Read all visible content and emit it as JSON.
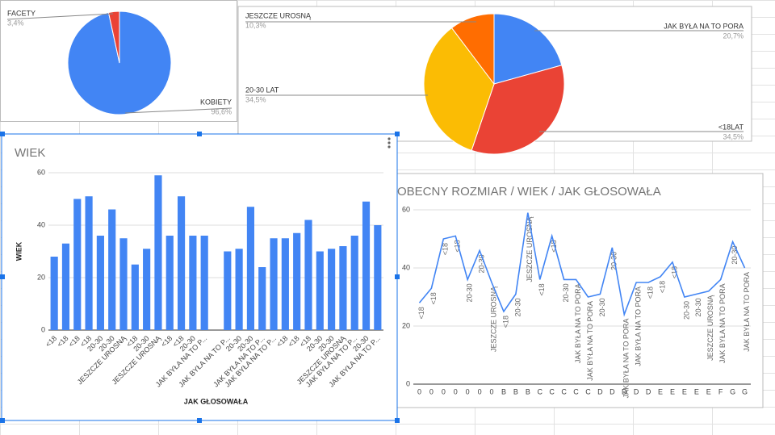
{
  "chart_data": [
    {
      "type": "pie",
      "categories": [
        "KOBIETY",
        "FACETY"
      ],
      "values": [
        96.6,
        3.4
      ],
      "value_labels": [
        "96,6%",
        "3,4%"
      ],
      "colors": [
        "#4285f4",
        "#ea4335"
      ]
    },
    {
      "type": "pie",
      "categories": [
        "JAK BYŁA NA TO PORA",
        "<18LAT",
        "20-30 LAT",
        "JESZCZE UROSNĄ"
      ],
      "values": [
        20.7,
        34.5,
        34.5,
        10.3
      ],
      "value_labels": [
        "20,7%",
        "34,5%",
        "34,5%",
        "10,3%"
      ],
      "colors": [
        "#4285f4",
        "#ea4335",
        "#fbbc04",
        "#ff6d01"
      ]
    },
    {
      "type": "line",
      "title": "OBECNY ROZMIAR / WIEK / JAK GŁOSOWAŁA",
      "categories": [
        "0",
        "0",
        "0",
        "0",
        "0",
        "0",
        "0",
        "B",
        "B",
        "B",
        "C",
        "C",
        "C",
        "C",
        "C",
        "D",
        "D",
        "D",
        "D",
        "D",
        "E",
        "E",
        "E",
        "E",
        "E",
        "F",
        "G",
        "G"
      ],
      "values": [
        28,
        33,
        50,
        51,
        36,
        46,
        35,
        25,
        31,
        59,
        36,
        51,
        36,
        36,
        30,
        31,
        47,
        24,
        35,
        35,
        37,
        42,
        30,
        31,
        32,
        36,
        49,
        40
      ],
      "point_labels": [
        "<18",
        "<18",
        "<18",
        "<18",
        "20-30",
        "20-30",
        "JESZCZE UROSNĄ",
        "<18",
        "20-30",
        "JESZCZE UROSNĄ",
        "<18",
        "<18",
        "20-30",
        "JAK BYŁA NA TO PORA",
        "JAK BYŁA NA TO PORA",
        "20-30",
        "20-30",
        "JAK BYŁA NA TO PORA",
        "JAK BYŁA NA TO PORA",
        "<18",
        "<18",
        "<18",
        "20-30",
        "20-30",
        "JESZCZE UROSNĄ",
        "JAK BYŁA NA TO PORA",
        "20-30",
        "JAK BYŁA NA TO PORA"
      ],
      "color": "#4285f4",
      "ylim": [
        0,
        60
      ],
      "yticks": [
        0,
        20,
        40,
        60
      ],
      "grid": true
    },
    {
      "type": "bar",
      "title": "WIEK",
      "ylabel": "WIEK",
      "xlabel": "JAK GŁOSOWAŁA",
      "categories": [
        "<18",
        "<18",
        "<18",
        "<18",
        "20-30",
        "20-30",
        "JESZCZE UROSNĄ",
        "<18",
        "20-30",
        "JESZCZE UROSNĄ",
        "<18",
        "<18",
        "20-30",
        "JAK BYŁA NA TO P...",
        null,
        "JAK BYŁA NA TO P...",
        "20-30",
        "20-30",
        "JAK BYŁA NA TO P...",
        "JAK BYŁA NA TO P...",
        "<18",
        "<18",
        "<18",
        "20-30",
        "20-30",
        "JESZCZE UROSNĄ",
        "JAK BYŁA NA TO P...",
        "20-30",
        "JAK BYŁA NA TO P..."
      ],
      "values": [
        28,
        33,
        50,
        51,
        36,
        46,
        35,
        25,
        31,
        59,
        36,
        51,
        36,
        36,
        null,
        30,
        31,
        47,
        24,
        35,
        35,
        37,
        42,
        30,
        31,
        32,
        36,
        49,
        40
      ],
      "color": "#4285f4",
      "ylim": [
        0,
        60
      ],
      "yticks": [
        0,
        20,
        40,
        60
      ],
      "grid": true
    }
  ]
}
